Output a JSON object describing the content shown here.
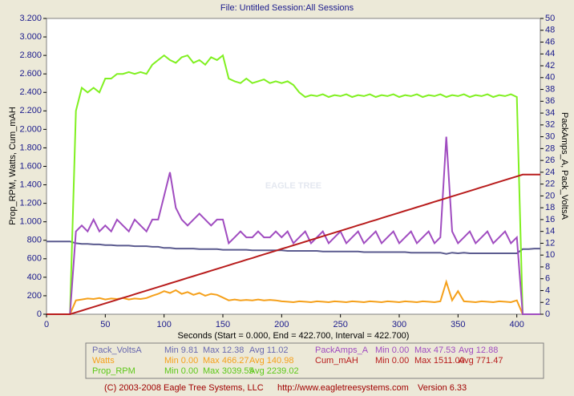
{
  "chart_data": {
    "type": "line",
    "title": "File: Untitled   Session:All Sessions",
    "x_label": "Seconds (Start = 0.000,  End = 422.700,  Interval = 422.700)",
    "y_label": "Prop_RPM, Watts, Cum_mAH",
    "y2_label": "PackAmps_A, Pack_VoltsA",
    "watermark": "EAGLE TREE",
    "footer": [
      "(C) 2003-2008 Eagle Tree Systems, LLC",
      "http://www.eagletreesystems.com",
      "Version 6.33"
    ],
    "xlim": [
      0,
      420
    ],
    "xticks": [
      0,
      50,
      100,
      150,
      200,
      250,
      300,
      350,
      400
    ],
    "ylim": [
      0,
      3200
    ],
    "yticks": [
      0,
      200,
      400,
      600,
      800,
      {
        "value": 1000,
        "label": "1.000"
      },
      {
        "value": 1200,
        "label": "1.200"
      },
      {
        "value": 1400,
        "label": "1.400"
      },
      {
        "value": 1600,
        "label": "1.600"
      },
      {
        "value": 1800,
        "label": "1.800"
      },
      {
        "value": 2000,
        "label": "2.000"
      },
      {
        "value": 2200,
        "label": "2.200"
      },
      {
        "value": 2400,
        "label": "2.400"
      },
      {
        "value": 2600,
        "label": "2.600"
      },
      {
        "value": 2800,
        "label": "2.800"
      },
      {
        "value": 3000,
        "label": "3.000"
      },
      {
        "value": 3200,
        "label": "3.200"
      }
    ],
    "y2lim": [
      0,
      50
    ],
    "y2ticks": [
      0,
      2,
      4,
      6,
      8,
      10,
      12,
      14,
      16,
      18,
      20,
      22,
      24,
      26,
      28,
      30,
      32,
      34,
      36,
      38,
      40,
      42,
      44,
      46,
      48,
      50
    ],
    "x": [
      0,
      5,
      10,
      15,
      20,
      25,
      30,
      35,
      40,
      45,
      50,
      55,
      60,
      65,
      70,
      75,
      80,
      85,
      90,
      95,
      100,
      105,
      110,
      115,
      120,
      125,
      130,
      135,
      140,
      145,
      150,
      155,
      160,
      165,
      170,
      175,
      180,
      185,
      190,
      195,
      200,
      205,
      210,
      215,
      220,
      225,
      230,
      235,
      240,
      245,
      250,
      255,
      260,
      265,
      270,
      275,
      280,
      285,
      290,
      295,
      300,
      305,
      310,
      315,
      320,
      325,
      330,
      335,
      340,
      345,
      350,
      355,
      360,
      365,
      370,
      375,
      380,
      385,
      390,
      395,
      400,
      405,
      410,
      415,
      420
    ],
    "series": [
      {
        "name": "Pack_VoltsA",
        "color": "#5b5b8f",
        "legend_color": "#6a6ab0",
        "axis": "y2",
        "stats": [
          "Min 9.81",
          "Max 12.38",
          "Avg 11.02"
        ],
        "values": [
          12.3,
          12.3,
          12.3,
          12.3,
          12.3,
          12.0,
          11.9,
          11.9,
          11.8,
          11.8,
          11.7,
          11.7,
          11.6,
          11.6,
          11.6,
          11.5,
          11.5,
          11.5,
          11.4,
          11.4,
          11.2,
          11.2,
          11.1,
          11.1,
          11.1,
          11.1,
          11.0,
          11.0,
          11.0,
          11.0,
          10.9,
          10.9,
          10.9,
          10.9,
          10.9,
          10.8,
          10.8,
          10.8,
          10.8,
          10.8,
          10.8,
          10.7,
          10.7,
          10.7,
          10.7,
          10.7,
          10.7,
          10.6,
          10.6,
          10.6,
          10.6,
          10.6,
          10.6,
          10.6,
          10.5,
          10.5,
          10.5,
          10.5,
          10.5,
          10.5,
          10.5,
          10.5,
          10.4,
          10.4,
          10.4,
          10.4,
          10.4,
          10.4,
          10.2,
          10.4,
          10.3,
          10.4,
          10.3,
          10.3,
          10.3,
          10.3,
          10.3,
          10.3,
          10.3,
          10.3,
          10.3,
          11.0,
          11.0,
          11.1,
          11.1
        ]
      },
      {
        "name": "Watts",
        "color": "#f5a01a",
        "legend_color": "#f5a01a",
        "stats": [
          "Min 0.00",
          "Max 466.27",
          "Avg 140.98"
        ],
        "values": [
          0,
          0,
          0,
          0,
          0,
          150,
          160,
          170,
          165,
          175,
          160,
          170,
          165,
          175,
          160,
          170,
          165,
          175,
          200,
          220,
          250,
          230,
          260,
          220,
          240,
          210,
          230,
          200,
          220,
          210,
          180,
          150,
          160,
          150,
          155,
          150,
          160,
          150,
          155,
          150,
          140,
          135,
          130,
          140,
          135,
          130,
          140,
          135,
          130,
          140,
          135,
          130,
          140,
          135,
          130,
          140,
          135,
          130,
          140,
          135,
          130,
          140,
          135,
          130,
          140,
          135,
          130,
          140,
          350,
          150,
          250,
          140,
          135,
          130,
          140,
          135,
          130,
          140,
          135,
          130,
          150,
          0,
          0,
          0,
          0
        ]
      },
      {
        "name": "Prop_RPM",
        "color": "#80f020",
        "legend_color": "#5cc818",
        "stats": [
          "Min 0.00",
          "Max 3039.55",
          "Avg 2239.02"
        ],
        "values": [
          0,
          0,
          0,
          0,
          0,
          2200,
          2450,
          2400,
          2450,
          2400,
          2550,
          2550,
          2600,
          2600,
          2620,
          2600,
          2620,
          2600,
          2700,
          2750,
          2800,
          2750,
          2720,
          2780,
          2800,
          2720,
          2750,
          2700,
          2780,
          2750,
          2800,
          2550,
          2520,
          2500,
          2550,
          2500,
          2520,
          2540,
          2500,
          2520,
          2500,
          2520,
          2480,
          2400,
          2350,
          2370,
          2360,
          2380,
          2350,
          2370,
          2360,
          2380,
          2350,
          2370,
          2360,
          2380,
          2350,
          2370,
          2360,
          2380,
          2350,
          2370,
          2360,
          2380,
          2350,
          2370,
          2360,
          2380,
          2350,
          2370,
          2360,
          2380,
          2350,
          2370,
          2360,
          2380,
          2350,
          2370,
          2360,
          2380,
          2350,
          0,
          0,
          0,
          0
        ]
      },
      {
        "name": "PackAmps_A",
        "color": "#a04cc0",
        "legend_color": "#a04cc0",
        "axis": "y2",
        "stats": [
          "Min 0.00",
          "Max 47.53",
          "Avg 12.88"
        ],
        "values": [
          0,
          0,
          0,
          0,
          0,
          14,
          15,
          14,
          16,
          14,
          15,
          14,
          16,
          15,
          14,
          16,
          15,
          14,
          16,
          16,
          20,
          24,
          18,
          16,
          15,
          16,
          17,
          16,
          15,
          16,
          16,
          12,
          13,
          14,
          13,
          13,
          14,
          13,
          13,
          14,
          13,
          14,
          12,
          13,
          14,
          12,
          13,
          14,
          12,
          13,
          14,
          12,
          13,
          14,
          12,
          13,
          14,
          12,
          13,
          14,
          12,
          13,
          14,
          12,
          13,
          14,
          12,
          13,
          30,
          14,
          12,
          13,
          14,
          12,
          13,
          14,
          12,
          13,
          14,
          12,
          13,
          0,
          0,
          0,
          0
        ]
      },
      {
        "name": "Cum_mAH",
        "color": "#b81c1c",
        "legend_color": "#b81c1c",
        "stats": [
          "Min 0.00",
          "Max 1511.00",
          "Avg 771.47"
        ],
        "values": [
          0,
          0,
          0,
          0,
          0,
          20,
          39,
          59,
          79,
          98,
          118,
          137,
          157,
          177,
          196,
          216,
          236,
          255,
          275,
          294,
          314,
          334,
          353,
          373,
          393,
          412,
          432,
          451,
          471,
          491,
          510,
          530,
          550,
          569,
          589,
          608,
          628,
          648,
          667,
          687,
          707,
          726,
          746,
          765,
          785,
          805,
          824,
          844,
          864,
          883,
          903,
          922,
          942,
          962,
          981,
          1001,
          1020,
          1040,
          1060,
          1079,
          1099,
          1119,
          1138,
          1158,
          1177,
          1197,
          1217,
          1236,
          1256,
          1276,
          1295,
          1315,
          1334,
          1354,
          1374,
          1393,
          1413,
          1433,
          1452,
          1472,
          1491,
          1511,
          1511,
          1511,
          1511
        ]
      }
    ]
  }
}
